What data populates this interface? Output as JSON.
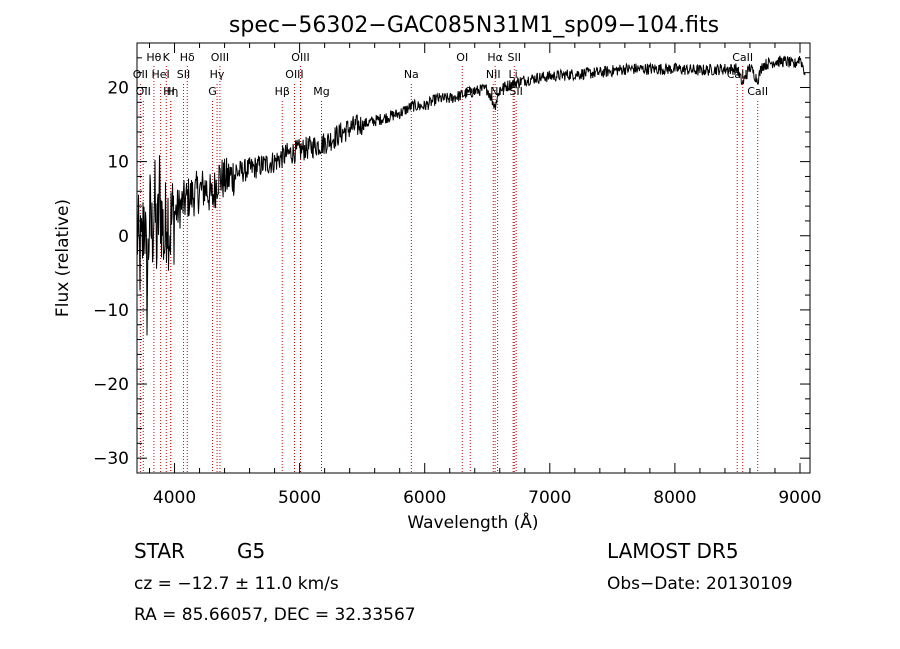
{
  "chart_data": {
    "type": "line",
    "title": "spec−56302−GAC085N31M1_sp09−104.fits",
    "xlabel": "Wavelength (Å)",
    "ylabel": "Flux (relative)",
    "xlim": [
      3700,
      9080
    ],
    "ylim": [
      -32,
      26
    ],
    "xticks": [
      4000,
      5000,
      6000,
      7000,
      8000,
      9000
    ],
    "yticks": [
      -30,
      -20,
      -10,
      0,
      10,
      20
    ],
    "ytick_labels": [
      "−30",
      "−20",
      "−10",
      "0",
      "10",
      "20"
    ],
    "grid": false,
    "line_color": "#000000",
    "marker_color": "#cc0000",
    "series": [
      {
        "x": [
          3700,
          3720,
          3740,
          3760,
          3780,
          3800,
          3820,
          3840,
          3860,
          3880,
          3900,
          3920,
          3940,
          3960,
          3980,
          4000,
          4050,
          4100,
          4150,
          4200,
          4250,
          4300,
          4350,
          4400,
          4500,
          4600,
          4700,
          4800,
          4900,
          5000,
          5100,
          5200,
          5300,
          5400,
          5500,
          5600,
          5700,
          5800,
          5900,
          6000,
          6100,
          6200,
          6300,
          6400,
          6500,
          6560,
          6600,
          6700,
          6800,
          6900,
          7000,
          7200,
          7400,
          7600,
          7800,
          8000,
          8200,
          8400,
          8500,
          8540,
          8600,
          8660,
          8700,
          8800,
          8900,
          8950,
          9000,
          9040
        ],
        "y": [
          1,
          -3,
          -2,
          4,
          -8,
          3,
          0,
          5,
          -2,
          6,
          2,
          -1,
          4,
          1,
          2,
          3,
          4,
          5,
          5.5,
          6,
          6.5,
          5,
          8,
          7.5,
          8.5,
          9,
          9.5,
          10,
          11,
          11.5,
          12,
          12.5,
          13.5,
          14.5,
          15,
          15.5,
          16,
          16.5,
          17.5,
          17.5,
          18.5,
          18.5,
          19,
          19.5,
          19.8,
          17.5,
          19.8,
          20.5,
          21,
          21.3,
          21.5,
          21.8,
          22,
          22.5,
          22.5,
          22.5,
          22.3,
          22.5,
          22.5,
          20.5,
          22.8,
          21,
          23,
          23.5,
          23.5,
          23,
          24,
          22
        ]
      }
    ],
    "line_markers": [
      {
        "x": 3727,
        "label": "OII",
        "row": 1
      },
      {
        "x": 3750,
        "label": "OII",
        "row": 2
      },
      {
        "x": 3835,
        "label": "Hθ",
        "row": 0
      },
      {
        "x": 3889,
        "label": "HeI",
        "row": 1
      },
      {
        "x": 3934,
        "label": "K",
        "row": 0
      },
      {
        "x": 3970,
        "label": "H",
        "row": 2
      },
      {
        "x": 3970,
        "label": "Hη",
        "row": 2
      },
      {
        "x": 4072,
        "label": "SII",
        "row": 1
      },
      {
        "x": 4102,
        "label": "Hδ",
        "row": 0
      },
      {
        "x": 4304,
        "label": "G",
        "row": 2
      },
      {
        "x": 4340,
        "label": "Hγ",
        "row": 1
      },
      {
        "x": 4363,
        "label": "OIII",
        "row": 0
      },
      {
        "x": 4861,
        "label": "Hβ",
        "row": 2
      },
      {
        "x": 4959,
        "label": "OIII",
        "row": 1
      },
      {
        "x": 5007,
        "label": "OIII",
        "row": 0
      },
      {
        "x": 5175,
        "label": "Mg",
        "row": 2
      },
      {
        "x": 5893,
        "label": "Na",
        "row": 1
      },
      {
        "x": 6300,
        "label": "OI",
        "row": 0
      },
      {
        "x": 6364,
        "label": "OI",
        "row": 2
      },
      {
        "x": 6548,
        "label": "NII",
        "row": 1
      },
      {
        "x": 6563,
        "label": "Hα",
        "row": 0
      },
      {
        "x": 6583,
        "label": "NII",
        "row": 2
      },
      {
        "x": 6707,
        "label": "Li",
        "row": 1
      },
      {
        "x": 6716,
        "label": "SII",
        "row": 0
      },
      {
        "x": 6731,
        "label": "SII",
        "row": 2
      },
      {
        "x": 8498,
        "label": "CaII",
        "row": 1
      },
      {
        "x": 8542,
        "label": "CaII",
        "row": 0
      },
      {
        "x": 8662,
        "label": "CaII",
        "row": 2
      }
    ]
  },
  "info": {
    "class": "STAR",
    "subclass": "G5",
    "survey": "LAMOST  DR5",
    "cz": "cz = −12.7 ± 11.0 km/s",
    "obs_date": "Obs−Date: 20130109",
    "coords": "RA =  85.66057, DEC =  32.33567"
  }
}
